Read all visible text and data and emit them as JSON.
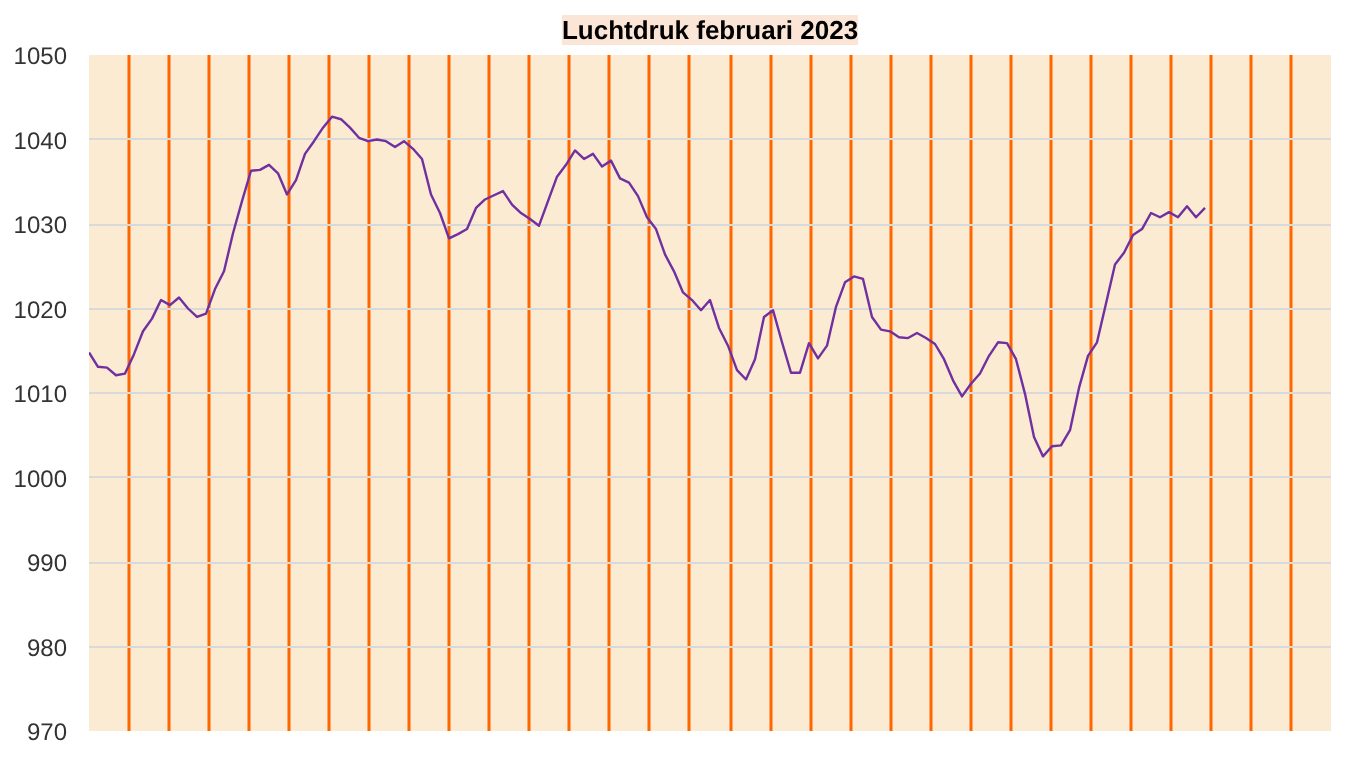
{
  "chart_data": {
    "type": "line",
    "title": "Luchtdruk februari 2023",
    "categories": [
      null,
      null,
      null,
      null,
      null,
      null,
      null,
      null,
      null,
      null,
      null,
      null,
      null,
      null,
      null,
      null,
      null,
      null,
      null,
      null,
      null,
      null,
      null,
      null,
      null,
      null,
      null,
      null,
      null,
      null,
      null,
      null,
      null,
      null,
      null,
      null,
      null,
      null,
      null,
      null,
      null,
      null,
      null,
      null,
      null,
      null,
      null,
      null,
      null,
      null,
      null,
      null,
      null,
      null,
      null,
      null,
      null,
      null,
      null,
      null,
      null,
      null,
      null,
      null,
      null,
      null,
      null,
      null,
      null,
      null,
      null,
      null,
      null,
      null,
      null,
      null,
      null,
      null,
      null,
      null,
      null,
      null,
      null,
      null,
      null,
      null,
      null,
      null,
      null,
      null,
      null,
      null,
      null,
      null,
      null,
      null,
      null,
      null,
      null,
      null,
      null,
      null,
      null,
      null,
      null,
      null,
      null,
      null,
      null,
      null,
      null,
      null,
      null,
      null,
      null,
      null,
      null,
      null,
      null,
      null,
      null,
      null,
      null,
      null,
      null,
      null,
      null,
      null,
      null,
      null,
      null,
      null,
      null,
      null,
      null,
      null,
      null,
      null,
      null
    ],
    "series": [
      {
        "color": "#7030a0",
        "values": [
          1014.8,
          1013.1,
          1013,
          1012.1,
          1012.3,
          1014.6,
          1017.3,
          1018.8,
          1021,
          1020.4,
          1021.3,
          1020,
          1019,
          1019.4,
          1022.3,
          1024.4,
          1028.9,
          1032.7,
          1036.3,
          1036.4,
          1037,
          1036,
          1033.5,
          1035.2,
          1038.3,
          1039.8,
          1041.4,
          1042.7,
          1042.4,
          1041.4,
          1040.2,
          1039.8,
          1040,
          1039.8,
          1039.1,
          1039.8,
          1038.9,
          1037.7,
          1033.5,
          1031.3,
          1028.3,
          1028.8,
          1029.4,
          1031.9,
          1032.9,
          1033.4,
          1033.9,
          1032.3,
          1031.3,
          1030.6,
          1029.8,
          1032.7,
          1035.6,
          1037,
          1038.7,
          1037.7,
          1038.3,
          1036.8,
          1037.5,
          1035.4,
          1034.9,
          1033.3,
          1030.8,
          1029.4,
          1026.4,
          1024.4,
          1021.9,
          1021,
          1019.8,
          1021,
          1017.7,
          1015.6,
          1012.7,
          1011.6,
          1014,
          1019,
          1019.8,
          1016,
          1012.4,
          1012.4,
          1015.9,
          1014.1,
          1015.6,
          1020.2,
          1023.1,
          1023.8,
          1023.5,
          1019,
          1017.5,
          1017.3,
          1016.6,
          1016.5,
          1017.1,
          1016.5,
          1015.8,
          1014,
          1011.5,
          1009.6,
          1011.1,
          1012.3,
          1014.4,
          1016,
          1015.9,
          1014,
          1009.9,
          1004.8,
          1002.5,
          1003.7,
          1003.8,
          1005.6,
          1010.6,
          1014.4,
          1016,
          1020.6,
          1025.2,
          1026.6,
          1028.7,
          1029.4,
          1031.3,
          1030.8,
          1031.4,
          1030.8,
          1032.1,
          1030.8,
          1031.9,
          null,
          null,
          null,
          null,
          null,
          null,
          null,
          null,
          null,
          null,
          null,
          null,
          null,
          null
        ]
      }
    ],
    "ylim": [
      970,
      1050
    ],
    "yticks": [
      970,
      980,
      990,
      1000,
      1010,
      1020,
      1030,
      1040,
      1050
    ],
    "grid": true,
    "tick_labels": "y"
  }
}
